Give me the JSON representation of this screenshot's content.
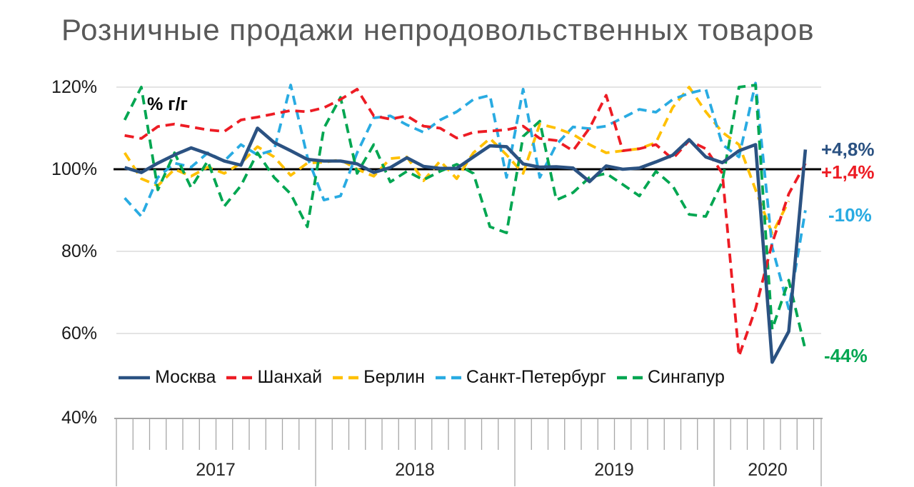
{
  "title": "Розничные продажи непродовольственных товаров",
  "chart_data": {
    "type": "line",
    "title": "Розничные продажи непродовольственных товаров",
    "unit_label": "% г/г",
    "baseline": 100,
    "ylim": [
      40,
      122
    ],
    "grid": "horizontal-light",
    "legend_position": "bottom",
    "y_axis": {
      "ticks": [
        120,
        100,
        80,
        60,
        40
      ],
      "tick_labels": [
        "120%",
        "100%",
        "80%",
        "60%",
        "40%"
      ],
      "gridline_color": "#DBDBDB",
      "baseline_color": "#000000"
    },
    "x_axis": {
      "start": "2017-01",
      "end": "2020-06",
      "tick_unit": "month",
      "years": [
        {
          "label": "2017",
          "months": 12
        },
        {
          "label": "2018",
          "months": 12
        },
        {
          "label": "2019",
          "months": 12
        },
        {
          "label": "2020",
          "months": 6
        }
      ],
      "axis_color": "#A6A6A6"
    },
    "series": [
      {
        "name": "Москва",
        "color": "#2B5282",
        "dashed": false,
        "end_label": "+4,8%",
        "values": [
          100.4,
          99.2,
          101.5,
          103.5,
          105.2,
          103.8,
          102.0,
          101.0,
          110.0,
          106.5,
          104.5,
          102.4,
          102.0,
          102.0,
          101.3,
          99.2,
          100.4,
          102.8,
          100.7,
          100.2,
          100.2,
          103.0,
          105.7,
          105.5,
          101.3,
          100.5,
          100.6,
          100.3,
          97.0,
          100.8,
          100.0,
          100.3,
          101.8,
          103.4,
          107.2,
          103.0,
          101.6,
          104.5,
          106.0,
          53.0,
          60.5,
          104.8
        ]
      },
      {
        "name": "Шанхай",
        "color": "#ED1C24",
        "dashed": true,
        "end_label": "+1,4%",
        "values": [
          108.2,
          107.5,
          110.4,
          111.0,
          110.3,
          109.6,
          109.2,
          112.0,
          112.7,
          113.5,
          114.3,
          114.0,
          115.0,
          117.0,
          119.5,
          113.0,
          112.2,
          113.0,
          110.5,
          110.0,
          107.6,
          109.0,
          109.3,
          109.6,
          110.5,
          107.5,
          107.0,
          104.5,
          110.0,
          118.0,
          104.5,
          105.0,
          106.0,
          102.5,
          107.0,
          105.0,
          99.0,
          54.5,
          66.0,
          82.0,
          94.0,
          101.4
        ]
      },
      {
        "name": "Берлин",
        "color": "#FFC000",
        "dashed": true,
        "end_label": null,
        "values": [
          104.0,
          97.7,
          96.0,
          100.0,
          98.3,
          100.5,
          99.0,
          101.5,
          105.5,
          103.0,
          98.5,
          101.5,
          101.7,
          102.3,
          100.0,
          98.3,
          102.6,
          103.0,
          97.2,
          102.0,
          97.7,
          104.0,
          107.5,
          103.5,
          99.0,
          111.0,
          110.0,
          108.5,
          106.0,
          104.0,
          104.5,
          105.0,
          106.5,
          115.0,
          120.0,
          114.0,
          109.0,
          106.0,
          95.0,
          84.3,
          92.2,
          null
        ]
      },
      {
        "name": "Санкт-Петербург",
        "color": "#29ABE2",
        "dashed": true,
        "end_label": "-10%",
        "values": [
          93.0,
          88.5,
          98.0,
          101.5,
          100.5,
          104.0,
          102.0,
          106.0,
          103.5,
          104.7,
          120.5,
          103.0,
          92.5,
          93.5,
          104.0,
          112.5,
          113.0,
          110.8,
          109.0,
          112.0,
          114.0,
          117.0,
          118.0,
          98.0,
          119.5,
          98.0,
          106.0,
          110.3,
          109.9,
          110.5,
          112.5,
          114.6,
          113.9,
          117.0,
          118.5,
          119.5,
          106.0,
          103.0,
          121.0,
          81.0,
          66.0,
          90.0
        ]
      },
      {
        "name": "Сингапур",
        "color": "#00A651",
        "dashed": true,
        "end_label": "-44%",
        "values": [
          112.0,
          120.0,
          95.0,
          104.0,
          95.5,
          102.0,
          91.0,
          96.0,
          104.0,
          98.0,
          94.0,
          86.0,
          110.0,
          117.5,
          99.0,
          106.0,
          96.9,
          99.5,
          97.4,
          99.5,
          101.2,
          99.0,
          86.0,
          84.5,
          108.0,
          111.7,
          92.5,
          94.3,
          98.0,
          99.0,
          96.3,
          93.5,
          99.5,
          96.0,
          89.0,
          88.5,
          97.0,
          120.0,
          120.5,
          61.0,
          73.0,
          56.0
        ]
      }
    ]
  }
}
